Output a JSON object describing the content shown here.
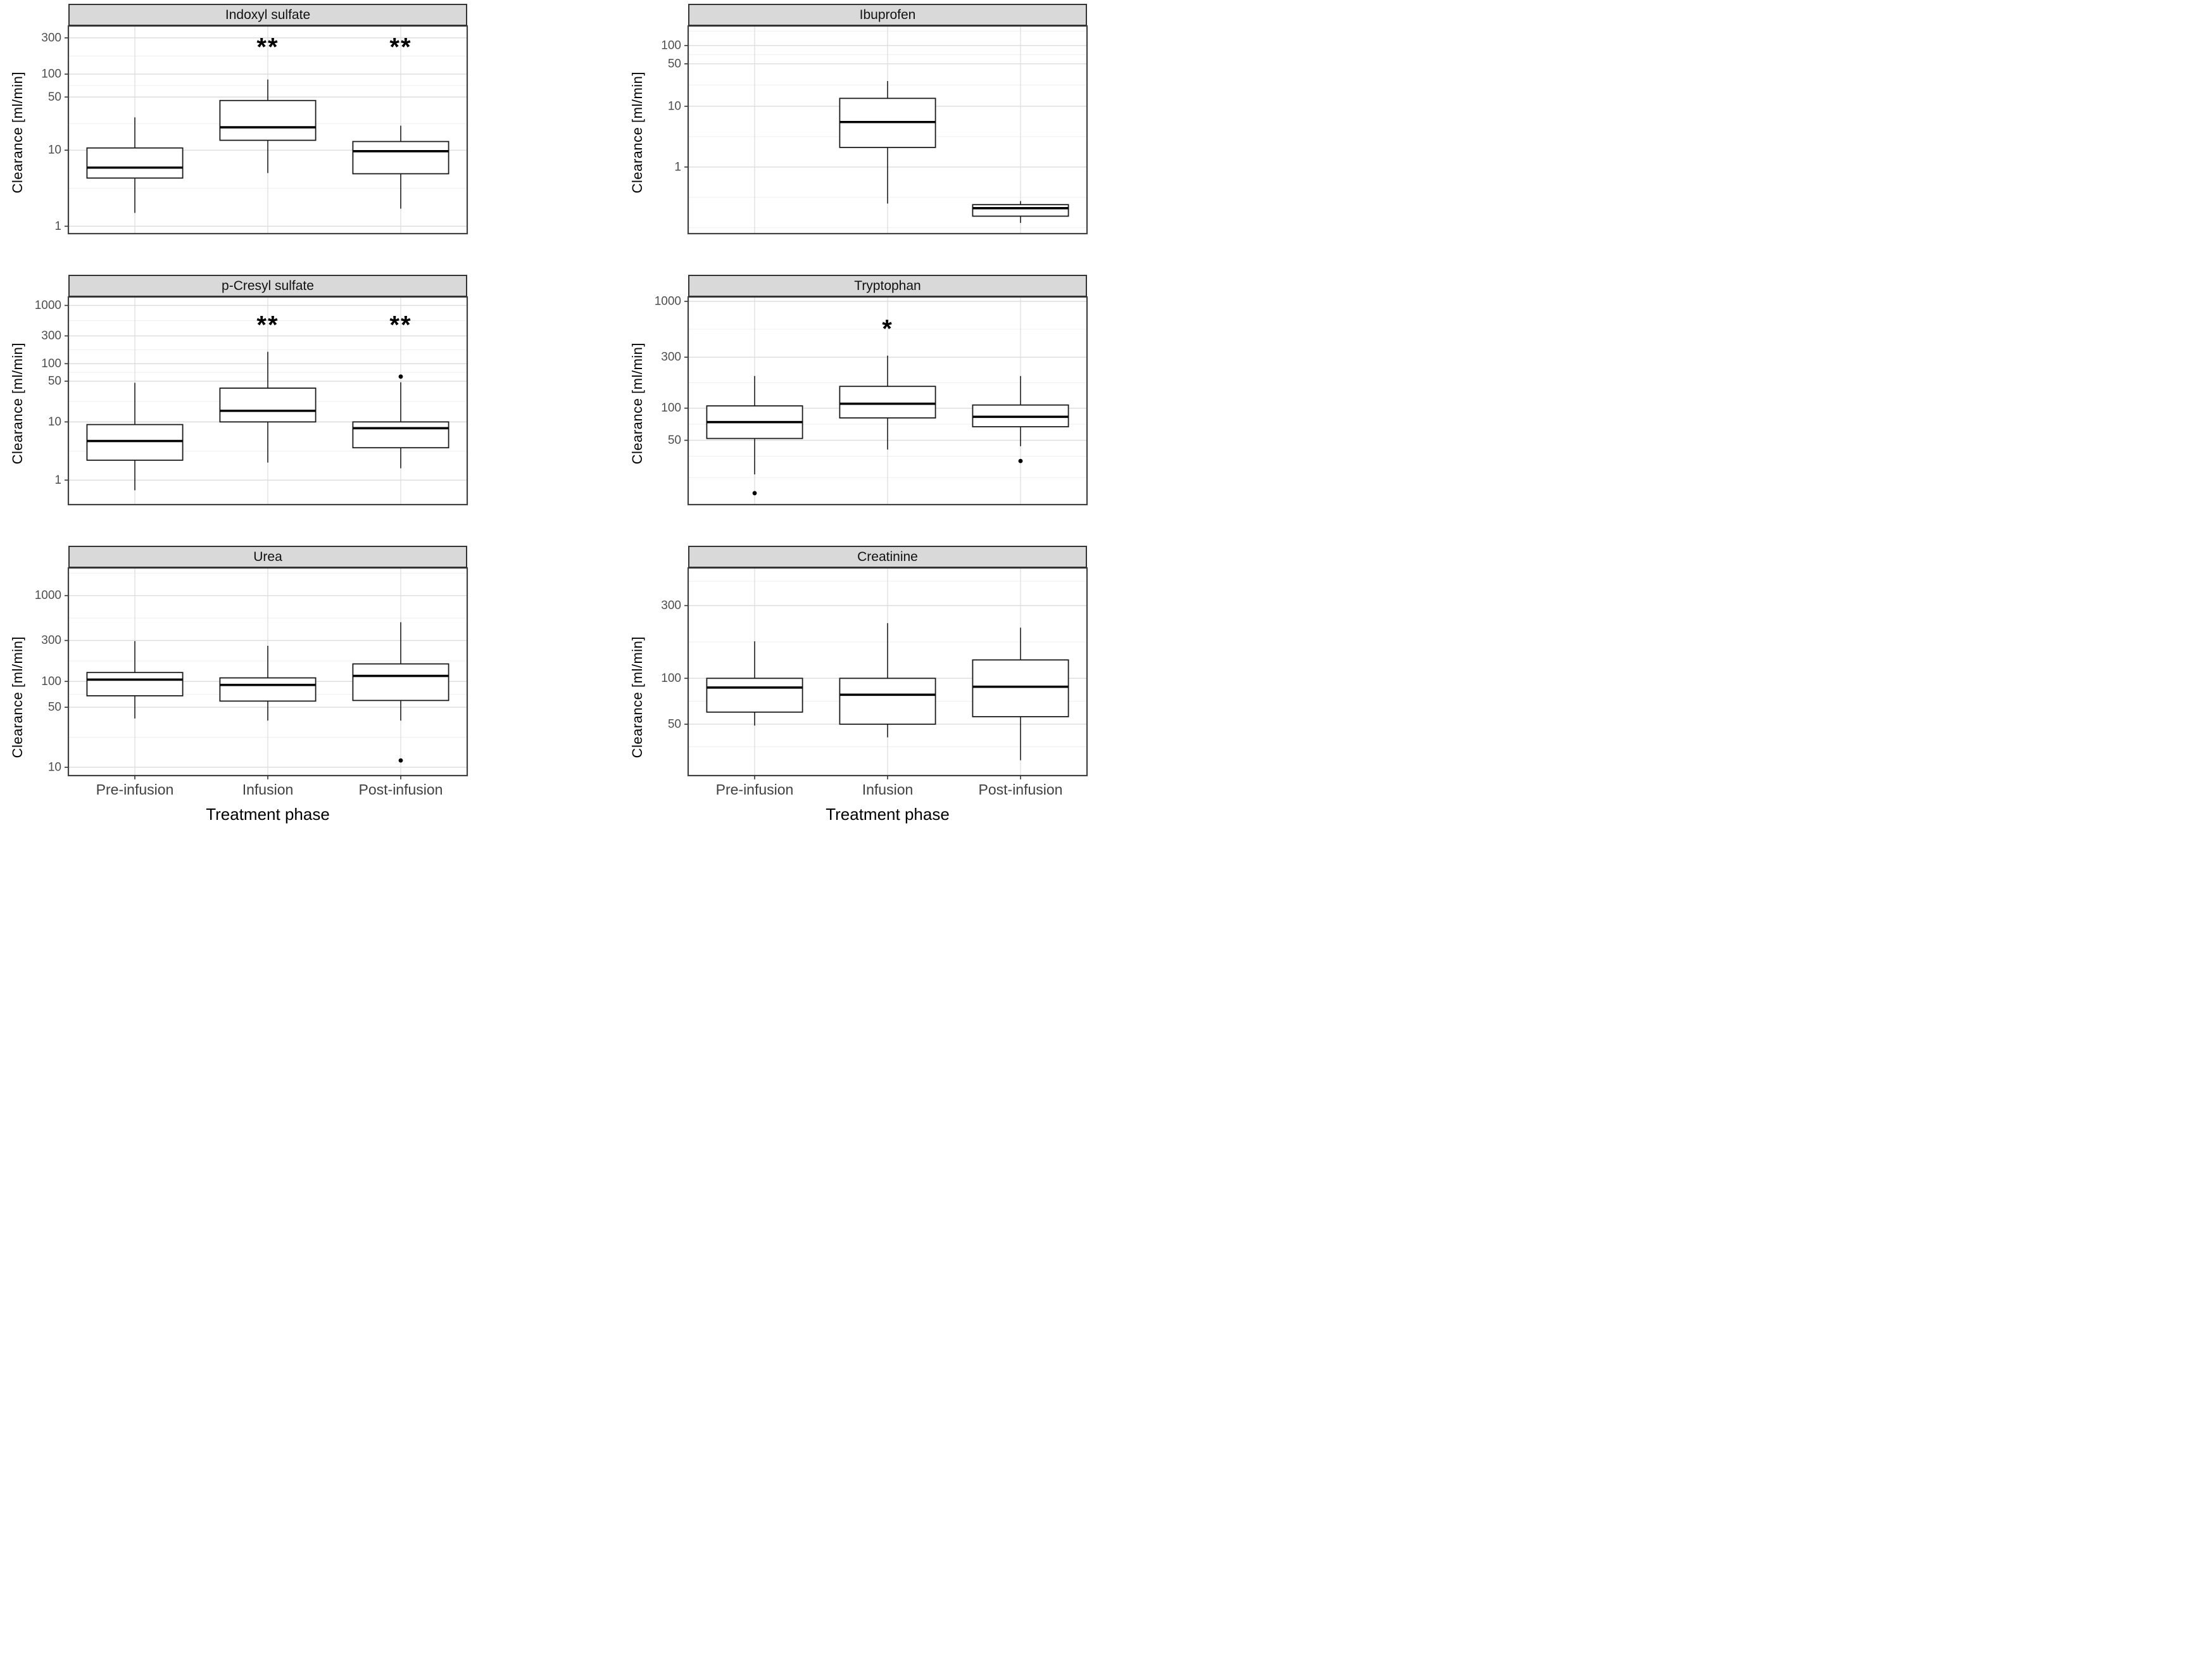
{
  "figure": {
    "y_axis_label": "Clearance [ml/min]",
    "x_axis_label": "Treatment phase",
    "categories": [
      "Pre-infusion",
      "Infusion",
      "Post-infusion"
    ],
    "colors": {
      "strip_bg": "#d9d9d9",
      "strip_border": "#333333",
      "panel_border": "#404040",
      "grid_major": "#dcdcdc",
      "grid_minor": "#efefef",
      "box_stroke": "#1a1a1a",
      "median_stroke": "#000000",
      "axis_tick_text": "#4d4d4d",
      "x_tick_text": "#404040",
      "annotation_color": "#000000"
    }
  },
  "chart_data": [
    {
      "type": "boxplot",
      "title": "Indoxyl sulfate",
      "ylabel": "Clearance [ml/min]",
      "ylim": [
        0.8,
        430
      ],
      "y_breaks": [
        1,
        10,
        50,
        100,
        300
      ],
      "y_minor": [
        3.16,
        22.4,
        70.8,
        173
      ],
      "annotation_y": 230,
      "boxes": [
        {
          "category": "Pre-infusion",
          "whisker_low": 1.5,
          "q1": 4.3,
          "median": 5.9,
          "q3": 10.7,
          "whisker_high": 27,
          "outliers": [],
          "annotation": ""
        },
        {
          "category": "Infusion",
          "whisker_low": 5.0,
          "q1": 13.5,
          "median": 20,
          "q3": 45,
          "whisker_high": 85,
          "outliers": [],
          "annotation": "**"
        },
        {
          "category": "Post-infusion",
          "whisker_low": 1.7,
          "q1": 4.9,
          "median": 9.7,
          "q3": 13,
          "whisker_high": 21,
          "outliers": [],
          "annotation": "**"
        }
      ]
    },
    {
      "type": "boxplot",
      "title": "Ibuprofen",
      "ylabel": "Clearance [ml/min]",
      "ylim": [
        0.08,
        210
      ],
      "y_breaks": [
        1,
        10,
        50,
        100
      ],
      "y_minor": [
        0.1,
        0.316,
        3.16,
        22.4,
        70.8,
        173
      ],
      "annotation_y": null,
      "boxes": [
        {
          "category": "Pre-infusion",
          "empty": true
        },
        {
          "category": "Infusion",
          "whisker_low": 0.25,
          "q1": 2.1,
          "median": 5.5,
          "q3": 13.5,
          "whisker_high": 26,
          "outliers": [],
          "annotation": ""
        },
        {
          "category": "Post-infusion",
          "whisker_low": 0.12,
          "q1": 0.155,
          "median": 0.21,
          "q3": 0.24,
          "whisker_high": 0.275,
          "outliers": [],
          "annotation": ""
        }
      ]
    },
    {
      "type": "boxplot",
      "title": "p-Cresyl sulfate",
      "ylabel": "Clearance [ml/min]",
      "ylim": [
        0.38,
        1400
      ],
      "y_breaks": [
        1,
        10,
        50,
        100,
        300,
        1000
      ],
      "y_minor": [
        3.16,
        22.4,
        70.8,
        173,
        548
      ],
      "annotation_y": 470,
      "boxes": [
        {
          "category": "Pre-infusion",
          "whisker_low": 0.67,
          "q1": 2.2,
          "median": 4.7,
          "q3": 9.0,
          "whisker_high": 47,
          "outliers": [],
          "annotation": ""
        },
        {
          "category": "Infusion",
          "whisker_low": 2.0,
          "q1": 10,
          "median": 15.5,
          "q3": 38,
          "whisker_high": 160,
          "outliers": [],
          "annotation": "**"
        },
        {
          "category": "Post-infusion",
          "whisker_low": 1.6,
          "q1": 3.6,
          "median": 7.8,
          "q3": 10,
          "whisker_high": 48,
          "outliers": [
            60
          ],
          "annotation": "**"
        }
      ]
    },
    {
      "type": "boxplot",
      "title": "Tryptophan",
      "ylabel": "Clearance [ml/min]",
      "ylim": [
        12.5,
        1100
      ],
      "y_breaks": [
        50,
        100,
        300,
        1000
      ],
      "y_minor": [
        22.4,
        35.5,
        70.8,
        173,
        548
      ],
      "annotation_y": 560,
      "boxes": [
        {
          "category": "Pre-infusion",
          "whisker_low": 24,
          "q1": 52,
          "median": 74,
          "q3": 105,
          "whisker_high": 200,
          "outliers": [
            16
          ],
          "annotation": ""
        },
        {
          "category": "Infusion",
          "whisker_low": 41,
          "q1": 81,
          "median": 110,
          "q3": 160,
          "whisker_high": 310,
          "outliers": [],
          "annotation": "*"
        },
        {
          "category": "Post-infusion",
          "whisker_low": 44,
          "q1": 67,
          "median": 83,
          "q3": 107,
          "whisker_high": 200,
          "outliers": [
            32
          ],
          "annotation": ""
        }
      ]
    },
    {
      "type": "boxplot",
      "title": "Urea",
      "ylabel": "Clearance [ml/min]",
      "ylim": [
        8,
        2100
      ],
      "y_breaks": [
        10,
        50,
        100,
        300,
        1000
      ],
      "y_minor": [
        22.4,
        70.8,
        173,
        548,
        1826
      ],
      "annotation_y": null,
      "boxes": [
        {
          "category": "Pre-infusion",
          "whisker_low": 37,
          "q1": 68,
          "median": 105,
          "q3": 127,
          "whisker_high": 295,
          "outliers": [],
          "annotation": ""
        },
        {
          "category": "Infusion",
          "whisker_low": 35,
          "q1": 59,
          "median": 91,
          "q3": 110,
          "whisker_high": 260,
          "outliers": [],
          "annotation": ""
        },
        {
          "category": "Post-infusion",
          "whisker_low": 35,
          "q1": 60,
          "median": 116,
          "q3": 160,
          "whisker_high": 490,
          "outliers": [
            12
          ],
          "annotation": ""
        }
      ]
    },
    {
      "type": "boxplot",
      "title": "Creatinine",
      "ylabel": "Clearance [ml/min]",
      "ylim": [
        23,
        530
      ],
      "y_breaks": [
        50,
        100,
        300
      ],
      "y_minor": [
        35.5,
        70.8,
        173,
        433
      ],
      "annotation_y": null,
      "boxes": [
        {
          "category": "Pre-infusion",
          "whisker_low": 49,
          "q1": 60,
          "median": 87,
          "q3": 100,
          "whisker_high": 175,
          "outliers": [],
          "annotation": ""
        },
        {
          "category": "Infusion",
          "whisker_low": 41,
          "q1": 50,
          "median": 78,
          "q3": 100,
          "whisker_high": 230,
          "outliers": [],
          "annotation": ""
        },
        {
          "category": "Post-infusion",
          "whisker_low": 29,
          "q1": 56,
          "median": 88,
          "q3": 132,
          "whisker_high": 215,
          "outliers": [],
          "annotation": ""
        }
      ]
    }
  ]
}
